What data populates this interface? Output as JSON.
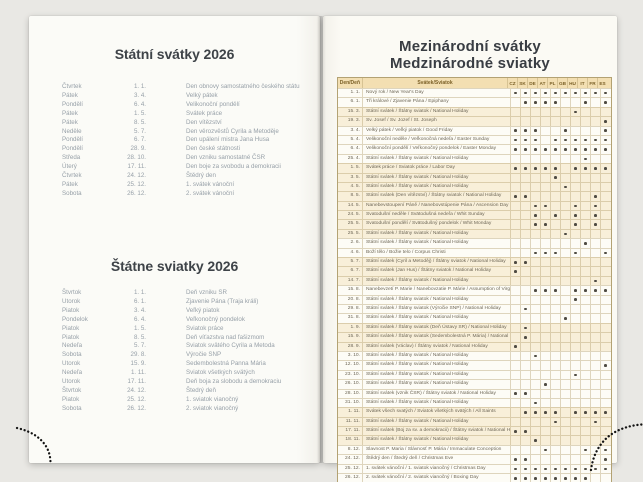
{
  "left_page": {
    "sections": [
      {
        "title": "Státní svátky 2026",
        "rows": [
          {
            "day": "Čtvrtek",
            "date": "1. 1.",
            "name": "Den obnovy samostatného českého státu"
          },
          {
            "day": "Pátek",
            "date": "3. 4.",
            "name": "Velký pátek"
          },
          {
            "day": "Pondělí",
            "date": "6. 4.",
            "name": "Velikonoční pondělí"
          },
          {
            "day": "Pátek",
            "date": "1. 5.",
            "name": "Svátek práce"
          },
          {
            "day": "Pátek",
            "date": "8. 5.",
            "name": "Den vítězství"
          },
          {
            "day": "Neděle",
            "date": "5. 7.",
            "name": "Den věrozvěstů Cyrila a Metoděje"
          },
          {
            "day": "Pondělí",
            "date": "6. 7.",
            "name": "Den upálení mistra Jana Husa"
          },
          {
            "day": "Pondělí",
            "date": "28. 9.",
            "name": "Den české státnosti"
          },
          {
            "day": "Středa",
            "date": "28. 10.",
            "name": "Den vzniku samostatné ČSR"
          },
          {
            "day": "Úterý",
            "date": "17. 11.",
            "name": "Den boje za svobodu a demokracii"
          },
          {
            "day": "Čtvrtek",
            "date": "24. 12.",
            "name": "Štědrý den"
          },
          {
            "day": "Pátek",
            "date": "25. 12.",
            "name": "1. svátek vánoční"
          },
          {
            "day": "Sobota",
            "date": "26. 12.",
            "name": "2. svátek vánoční"
          }
        ]
      },
      {
        "title": "Štátne sviatky 2026",
        "rows": [
          {
            "day": "Štvrtok",
            "date": "1. 1.",
            "name": "Deň vzniku SR"
          },
          {
            "day": "Utorok",
            "date": "6. 1.",
            "name": "Zjavenie Pána (Traja králi)"
          },
          {
            "day": "Piatok",
            "date": "3. 4.",
            "name": "Veľký piatok"
          },
          {
            "day": "Pondelok",
            "date": "6. 4.",
            "name": "Veľkonočný pondelok"
          },
          {
            "day": "Piatok",
            "date": "1. 5.",
            "name": "Sviatok práce"
          },
          {
            "day": "Piatok",
            "date": "8. 5.",
            "name": "Deň víťazstva nad fašizmom"
          },
          {
            "day": "Nedeľa",
            "date": "5. 7.",
            "name": "Sviatok svätého Cyrila a Metoda"
          },
          {
            "day": "Sobota",
            "date": "29. 8.",
            "name": "Výročie SNP"
          },
          {
            "day": "Utorok",
            "date": "15. 9.",
            "name": "Sedembolestná Panna Mária"
          },
          {
            "day": "Nedeľa",
            "date": "1. 11.",
            "name": "Sviatok všetkých svätých"
          },
          {
            "day": "Utorok",
            "date": "17. 11.",
            "name": "Deň boja za slobodu a demokraciu"
          },
          {
            "day": "Štvrtok",
            "date": "24. 12.",
            "name": "Štedrý deň"
          },
          {
            "day": "Piatok",
            "date": "25. 12.",
            "name": "1. sviatok vianočný"
          },
          {
            "day": "Sobota",
            "date": "26. 12.",
            "name": "2. sviatok vianočný"
          }
        ]
      }
    ]
  },
  "right_page": {
    "title_line1": "Mezinárodní svátky",
    "title_line2": "Medzinárodné sviatky",
    "table": {
      "col_day_header": "Den/Deň",
      "col_holiday_header": "Svátek/Sviatok",
      "countries": [
        "CZ",
        "SK",
        "DE",
        "AT",
        "PL",
        "GB",
        "HU",
        "IT",
        "FR",
        "ES"
      ],
      "rows": [
        {
          "date": "1. 1.",
          "name": "Nový rok / New Year's Day",
          "marks": [
            "CZ",
            "SK",
            "DE",
            "AT",
            "PL",
            "GB",
            "HU",
            "IT",
            "FR",
            "ES"
          ],
          "shaded": false
        },
        {
          "date": "6. 1.",
          "name": "Tři králové / Zjavenie Pána / Epiphany",
          "marks": [
            "SK",
            "DE",
            "AT",
            "PL",
            "IT",
            "ES"
          ],
          "shaded": false
        },
        {
          "date": "15. 3.",
          "name": "Státní svátek / Štátny sviatok / National Holiday",
          "marks": [
            "HU"
          ],
          "shaded": true
        },
        {
          "date": "19. 3.",
          "name": "Sv. Josef / Sv. Jozef / St. Joseph",
          "marks": [
            "ES"
          ],
          "shaded": true
        },
        {
          "date": "3. 4.",
          "name": "Velký pátek / Veľký piatok / Good Friday",
          "marks": [
            "CZ",
            "SK",
            "DE",
            "GB",
            "ES"
          ],
          "shaded": false
        },
        {
          "date": "5. 4.",
          "name": "Velikonoční neděle / Veľkonočná nedeľa / Easter Sunday",
          "marks": [
            "CZ",
            "SK",
            "DE",
            "PL",
            "GB",
            "HU",
            "IT",
            "FR",
            "ES"
          ],
          "shaded": false
        },
        {
          "date": "6. 4.",
          "name": "Velikonoční pondělí / Veľkonočný pondelok / Easter Monday",
          "marks": [
            "CZ",
            "SK",
            "DE",
            "AT",
            "PL",
            "GB",
            "HU",
            "IT",
            "FR",
            "ES"
          ],
          "shaded": false
        },
        {
          "date": "25. 4.",
          "name": "Státní svátek / Štátny sviatok / National Holiday",
          "marks": [
            "IT"
          ],
          "shaded": false
        },
        {
          "date": "1. 5.",
          "name": "Svátek práce / Sviatok práce / Labor Day",
          "marks": [
            "CZ",
            "SK",
            "DE",
            "AT",
            "PL",
            "HU",
            "IT",
            "FR",
            "ES"
          ],
          "shaded": true
        },
        {
          "date": "3. 5.",
          "name": "Státní svátek / Štátny sviatok / National Holiday",
          "marks": [
            "PL"
          ],
          "shaded": true
        },
        {
          "date": "4. 5.",
          "name": "Státní svátek / Štátny sviatok / National Holiday",
          "marks": [
            "GB"
          ],
          "shaded": true
        },
        {
          "date": "8. 5.",
          "name": "Státní svátek (Den vítězství) / Štátny sviatok / National Holiday",
          "marks": [
            "CZ",
            "SK",
            "FR"
          ],
          "shaded": true
        },
        {
          "date": "14. 5.",
          "name": "Nanebevstoupení Páně / Nanebovstúpenie Pána / Ascension Day",
          "marks": [
            "DE",
            "AT",
            "HU",
            "FR"
          ],
          "shaded": true
        },
        {
          "date": "24. 5.",
          "name": "Svatodušní neděle / Svätodušná nedeľa / Whit Sunday",
          "marks": [
            "DE",
            "PL",
            "HU",
            "FR"
          ],
          "shaded": true
        },
        {
          "date": "25. 5.",
          "name": "Svatodušní pondělí / Svätodušný pondelok / Whit Monday",
          "marks": [
            "DE",
            "AT",
            "HU",
            "FR"
          ],
          "shaded": true
        },
        {
          "date": "25. 5.",
          "name": "Státní svátek / Štátny sviatok / National Holiday",
          "marks": [
            "GB"
          ],
          "shaded": true
        },
        {
          "date": "2. 6.",
          "name": "Státní svátek / Štátny sviatok / National Holiday",
          "marks": [
            "IT"
          ],
          "shaded": false
        },
        {
          "date": "4. 6.",
          "name": "Boží tělo / Božie telo / Corpus Christi",
          "marks": [
            "DE",
            "AT",
            "PL",
            "HU",
            "ES"
          ],
          "shaded": false
        },
        {
          "date": "5. 7.",
          "name": "Státní svátek (Cyril a Metoděj) / Štátny sviatok / National Holiday",
          "marks": [
            "CZ",
            "SK"
          ],
          "shaded": true
        },
        {
          "date": "6. 7.",
          "name": "Státní svátek (Jan Hus) / Štátny sviatok / National Holiday",
          "marks": [
            "CZ"
          ],
          "shaded": true
        },
        {
          "date": "14. 7.",
          "name": "Státní svátek / Štátny sviatok / National Holiday",
          "marks": [
            "FR"
          ],
          "shaded": true
        },
        {
          "date": "15. 8.",
          "name": "Nanebevzetí P. Marie / Nanebovzatie P. Márie / Assumption of Virgin Mary",
          "marks": [
            "DE",
            "AT",
            "PL",
            "HU",
            "IT",
            "FR",
            "ES"
          ],
          "shaded": false
        },
        {
          "date": "20. 8.",
          "name": "Státní svátek / Štátny sviatok / National Holiday",
          "marks": [
            "HU"
          ],
          "shaded": false
        },
        {
          "date": "29. 8.",
          "name": "Státní svátek / Štátny sviatok (Výročie SNP) / National Holiday",
          "marks": [
            "SK"
          ],
          "shaded": false
        },
        {
          "date": "31. 8.",
          "name": "Státní svátek / Štátny sviatok / National Holiday",
          "marks": [
            "GB"
          ],
          "shaded": false
        },
        {
          "date": "1. 9.",
          "name": "Státní svátek / Štátny sviatok (Deň Ústavy SR) / National Holiday",
          "marks": [
            "SK"
          ],
          "shaded": true
        },
        {
          "date": "15. 9.",
          "name": "Státní svátek / Štátny sviatok (Sedembolestná P. Mária) / National Holiday",
          "marks": [
            "SK"
          ],
          "shaded": true
        },
        {
          "date": "28. 9.",
          "name": "Státní svátek (Václav) / Štátny sviatok / National Holiday",
          "marks": [
            "CZ"
          ],
          "shaded": true
        },
        {
          "date": "3. 10.",
          "name": "Státní svátek / Štátny sviatok / National Holiday",
          "marks": [
            "DE"
          ],
          "shaded": false
        },
        {
          "date": "12. 10.",
          "name": "Státní svátek / Štátny sviatok / National Holiday",
          "marks": [
            "ES"
          ],
          "shaded": false
        },
        {
          "date": "23. 10.",
          "name": "Státní svátek / Štátny sviatok / National Holiday",
          "marks": [
            "HU"
          ],
          "shaded": false
        },
        {
          "date": "26. 10.",
          "name": "Státní svátek / Štátny sviatok / National Holiday",
          "marks": [
            "AT"
          ],
          "shaded": false
        },
        {
          "date": "28. 10.",
          "name": "Státní svátek (vznik ČSR) / Štátny sviatok / National Holiday",
          "marks": [
            "CZ",
            "SK"
          ],
          "shaded": false
        },
        {
          "date": "31. 10.",
          "name": "Státní svátek / Štátny sviatok / National Holiday",
          "marks": [
            "DE"
          ],
          "shaded": false
        },
        {
          "date": "1. 11.",
          "name": "Svátek všech svatých / Sviatok všetkých svätých / All Saints",
          "marks": [
            "SK",
            "DE",
            "AT",
            "PL",
            "HU",
            "IT",
            "FR",
            "ES"
          ],
          "shaded": true
        },
        {
          "date": "11. 11.",
          "name": "Státní svátek / Štátny sviatok / National Holiday",
          "marks": [
            "PL",
            "FR"
          ],
          "shaded": true
        },
        {
          "date": "17. 11.",
          "name": "Státní svátek (Boj za sv. a demokracii) / Štátny sviatok / National Holiday",
          "marks": [
            "CZ",
            "SK"
          ],
          "shaded": true
        },
        {
          "date": "18. 11.",
          "name": "Státní svátek / Štátny sviatok / National Holiday",
          "marks": [
            "DE"
          ],
          "shaded": true
        },
        {
          "date": "8. 12.",
          "name": "Slavnost P. Maria / Slávnosť P. Mária / Immaculate Conception",
          "marks": [
            "AT",
            "IT",
            "ES"
          ],
          "shaded": false
        },
        {
          "date": "24. 12.",
          "name": "Štědrý den / Štedrý deň / Christmas Eve",
          "marks": [
            "CZ",
            "SK",
            "ES"
          ],
          "shaded": false
        },
        {
          "date": "25. 12.",
          "name": "1. svátek vánoční / 1. sviatok vianočný / Christmas Day",
          "marks": [
            "CZ",
            "SK",
            "DE",
            "AT",
            "PL",
            "GB",
            "HU",
            "IT",
            "FR",
            "ES"
          ],
          "shaded": false
        },
        {
          "date": "26. 12.",
          "name": "2. svátek vánoční / 2. sviatok vianočný / Boxing Day",
          "marks": [
            "CZ",
            "SK",
            "DE",
            "AT",
            "PL",
            "GB",
            "HU",
            "IT"
          ],
          "shaded": false
        }
      ]
    }
  },
  "colors": {
    "background": "#e9e8e4",
    "page": "#fbfbf7",
    "table_header_bg": "#f3dfb2",
    "table_header_text": "#7c6128",
    "table_row_shaded": "#f8efd9",
    "table_row_plain": "#fdfcf6",
    "table_border": "#ab9761",
    "dot": "#4e4b43",
    "list_text": "#97a0a8",
    "heading_text": "#3e4348"
  }
}
